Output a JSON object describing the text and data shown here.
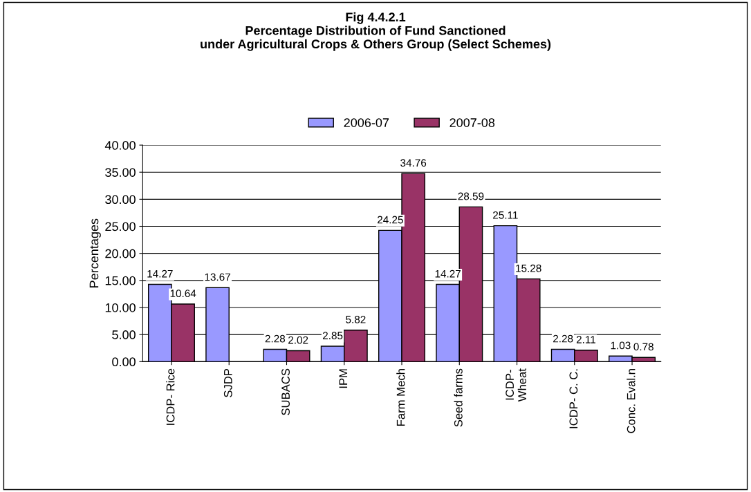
{
  "chart_data": {
    "type": "bar",
    "title": "Fig 4.4.2.1\nPercentage Distribution of Fund Sanctioned\nunder Agricultural Crops & Others Group (Select Schemes)",
    "ylabel": "Percentages",
    "categories": [
      "ICDP- Rice",
      "SJDP",
      "SUBACS",
      "IPM",
      "Farm Mech",
      "Seed farms",
      "ICDP-\nWheat",
      "ICDP- C. C.",
      "Conc. Eval.n"
    ],
    "series": [
      {
        "name": "2006-07",
        "color": "#9999ff",
        "values": [
          14.27,
          13.67,
          2.28,
          2.85,
          24.25,
          14.27,
          25.11,
          2.28,
          1.03
        ]
      },
      {
        "name": "2007-08",
        "color": "#993366",
        "values": [
          10.64,
          null,
          2.02,
          5.82,
          34.76,
          28.59,
          15.28,
          2.11,
          0.78
        ]
      }
    ],
    "ylim": [
      0,
      40
    ],
    "yticks": [
      {
        "value": 0,
        "label": "0.00"
      },
      {
        "value": 5,
        "label": "5.00"
      },
      {
        "value": 10,
        "label": "10.00"
      },
      {
        "value": 15,
        "label": "15.00"
      },
      {
        "value": 20,
        "label": "20.00"
      },
      {
        "value": 25,
        "label": "25.00"
      },
      {
        "value": 30,
        "label": "30.00"
      },
      {
        "value": 35,
        "label": "35.00"
      },
      {
        "value": 40,
        "label": "40.00"
      }
    ],
    "grid": "y",
    "legend": "top",
    "data_labels": true
  }
}
